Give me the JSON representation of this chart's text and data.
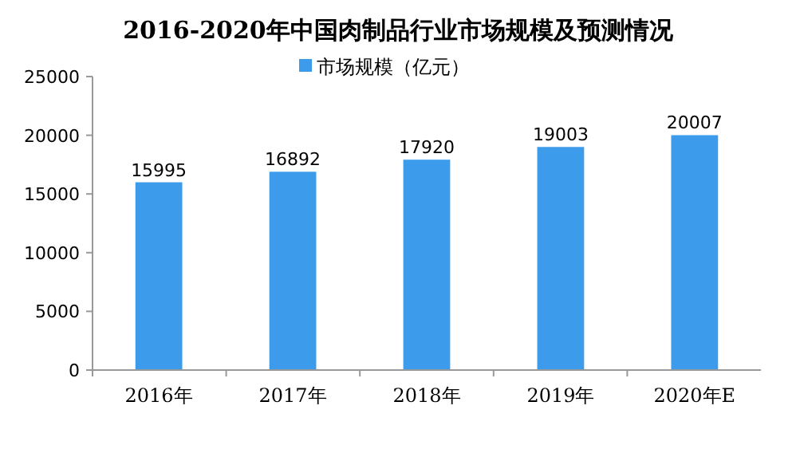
{
  "chart_data": {
    "type": "bar",
    "title": "2016-2020年中国肉制品行业市场规模及预测情况",
    "categories": [
      "2016年",
      "2017年",
      "2018年",
      "2019年",
      "2020年E"
    ],
    "series": [
      {
        "name": "市场规模（亿元）",
        "color": "#3d9bec",
        "values": [
          15995,
          16892,
          17920,
          19003,
          20007
        ]
      }
    ],
    "ylim": [
      0,
      25000
    ],
    "yticks": [
      0,
      5000,
      10000,
      15000,
      20000,
      25000
    ],
    "data_labels": true,
    "legend": "top",
    "grid": false
  }
}
